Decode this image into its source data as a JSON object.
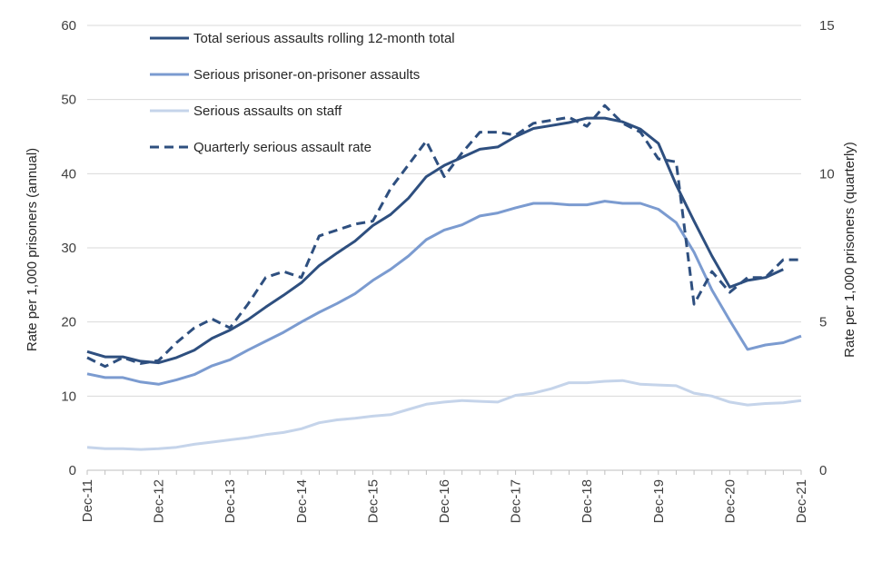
{
  "chart_data": {
    "type": "line",
    "title": "",
    "ylabel": "Rate per 1,000 prisoners (annual)",
    "y2label": "Rate per 1,000 prisoners (quarterly)",
    "ylim": [
      0,
      60
    ],
    "y2lim": [
      0,
      15
    ],
    "yticks": [
      0,
      10,
      20,
      30,
      40,
      50,
      60
    ],
    "y2ticks": [
      0,
      5,
      10,
      15
    ],
    "xtick_labels": [
      "Dec-11",
      "Dec-12",
      "Dec-13",
      "Dec-14",
      "Dec-15",
      "Dec-16",
      "Dec-17",
      "Dec-18",
      "Dec-19",
      "Dec-20",
      "Dec-21"
    ],
    "legend_position": "top-left",
    "x_count": 41,
    "series": [
      {
        "name": "Total serious assaults rolling 12-month total",
        "axis": "left",
        "color": "#2e4f7f",
        "dash": "solid",
        "values": [
          16.0,
          15.3,
          15.3,
          14.7,
          14.5,
          15.2,
          16.2,
          17.8,
          18.9,
          20.3,
          22.0,
          23.6,
          25.3,
          27.6,
          29.3,
          30.9,
          33.0,
          34.5,
          36.7,
          39.6,
          41.1,
          42.2,
          43.3,
          43.6,
          45.0,
          46.1,
          46.5,
          46.9,
          47.5,
          47.5,
          47.0,
          46.0,
          44.1,
          38.5,
          33.6,
          28.9,
          24.7,
          25.6,
          26.0,
          27.1,
          null
        ]
      },
      {
        "name": "Serious prisoner-on-prisoner assaults",
        "axis": "left",
        "color": "#7b9bd0",
        "dash": "solid",
        "values": [
          13.0,
          12.5,
          12.5,
          11.9,
          11.6,
          12.2,
          12.9,
          14.1,
          14.9,
          16.2,
          17.4,
          18.6,
          20.0,
          21.3,
          22.5,
          23.8,
          25.6,
          27.1,
          28.9,
          31.1,
          32.4,
          33.1,
          34.3,
          34.7,
          35.4,
          36.0,
          36.0,
          35.8,
          35.8,
          36.3,
          36.0,
          36.0,
          35.2,
          33.4,
          29.4,
          24.3,
          20.2,
          16.3,
          16.9,
          17.2,
          18.1
        ]
      },
      {
        "name": "Serious assaults on staff",
        "axis": "left",
        "color": "#c5d4ea",
        "dash": "solid",
        "values": [
          3.1,
          2.9,
          2.9,
          2.8,
          2.9,
          3.1,
          3.5,
          3.8,
          4.1,
          4.4,
          4.8,
          5.1,
          5.6,
          6.4,
          6.8,
          7.0,
          7.3,
          7.5,
          8.2,
          8.9,
          9.2,
          9.4,
          9.3,
          9.2,
          10.1,
          10.4,
          11.0,
          11.8,
          11.8,
          12.0,
          12.1,
          11.6,
          11.5,
          11.4,
          10.4,
          10.0,
          9.2,
          8.8,
          9.0,
          9.1,
          9.4
        ]
      },
      {
        "name": "Quarterly serious assault rate",
        "axis": "right",
        "color": "#2e4f7f",
        "dash": "dashed",
        "values": [
          3.8,
          3.5,
          3.8,
          3.6,
          3.7,
          4.3,
          4.8,
          5.1,
          4.8,
          5.6,
          6.5,
          6.7,
          6.5,
          7.9,
          8.1,
          8.3,
          8.4,
          9.5,
          10.3,
          11.1,
          9.9,
          10.7,
          11.4,
          11.4,
          11.3,
          11.7,
          11.8,
          11.9,
          11.6,
          12.3,
          11.7,
          11.4,
          10.5,
          10.4,
          5.6,
          6.7,
          6.0,
          6.5,
          6.5,
          7.1,
          7.1
        ]
      }
    ]
  }
}
